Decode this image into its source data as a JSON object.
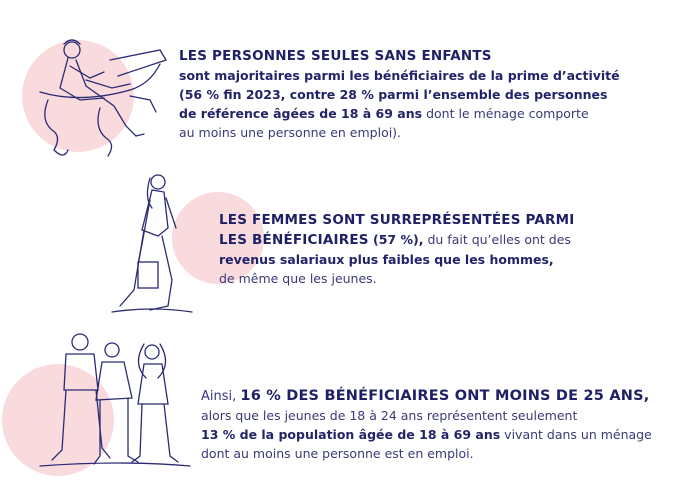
{
  "blocks": [
    {
      "lines": [
        [
          {
            "text": "LES PERSONNES SEULES SANS ENFANTS",
            "style": "heading"
          }
        ],
        [
          {
            "text": "sont majoritaires parmi les bénéficiaires de la prime d’activité",
            "style": "bold"
          }
        ],
        [
          {
            "text": "(56 % fin 2023, contre 28 % parmi l’ensemble des personnes",
            "style": "bold"
          }
        ],
        [
          {
            "text": "de référence âgées de 18 à 69 ans",
            "style": "bold"
          },
          {
            "text": " dont le ménage comporte",
            "style": "regular"
          }
        ],
        [
          {
            "text": "au moins une personne en emploi).",
            "style": "regular"
          }
        ]
      ]
    },
    {
      "lines": [
        [
          {
            "text": "LES FEMMES SONT SURREPRÉSENTÉES PARMI",
            "style": "heading"
          }
        ],
        [
          {
            "text": "LES BÉNÉFICIAIRES",
            "style": "heading"
          },
          {
            "text": " (57 %),",
            "style": "bold"
          },
          {
            "text": " du fait qu’elles ont des",
            "style": "regular"
          }
        ],
        [
          {
            "text": "revenus salariaux plus faibles que les hommes,",
            "style": "bold"
          }
        ],
        [
          {
            "text": "de même que les jeunes.",
            "style": "regular"
          }
        ]
      ]
    },
    {
      "lines": [
        [
          {
            "text": "Ainsi, ",
            "style": "regular"
          },
          {
            "text": "16 % DES BÉNÉFICIAIRES ONT MOINS DE 25 ANS,",
            "style": "heading"
          }
        ],
        [
          {
            "text": "alors que les jeunes de 18 à 24 ans représentent seulement",
            "style": "regular"
          }
        ],
        [
          {
            "text": "13 % de la population âgée de 18 à 69 ans",
            "style": "bold"
          },
          {
            "text": " vivant dans un ménage",
            "style": "regular"
          }
        ],
        [
          {
            "text": "dont au moins une personne est en emploi.",
            "style": "regular"
          }
        ]
      ]
    }
  ]
}
